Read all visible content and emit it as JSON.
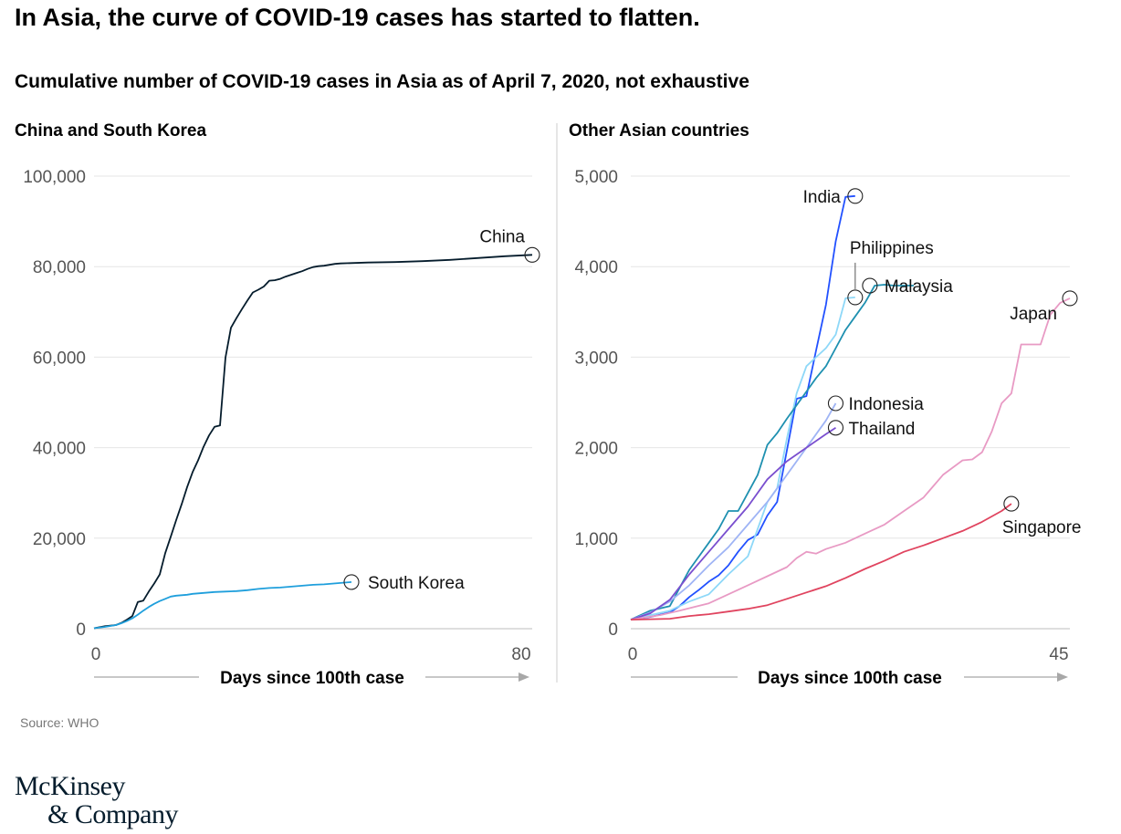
{
  "headline": "In Asia, the curve of COVID-19 cases has started to flatten.",
  "subtitle": "Cumulative number of COVID-19 cases in Asia as of April 7, 2020, not exhaustive",
  "source": "Source: WHO",
  "logo": {
    "line1": "McKinsey",
    "line2": "& Company"
  },
  "colors": {
    "grid": "#e6e6e6",
    "axis": "#999999",
    "tick_text": "#555555"
  },
  "chart_data": [
    {
      "type": "line",
      "title": "China and South Korea",
      "xlabel": "Days since 100th case",
      "xlim": [
        0,
        80
      ],
      "xticks": [
        "0",
        "80"
      ],
      "ylim": [
        0,
        100000
      ],
      "yticks": [
        {
          "value": 0,
          "label": "0"
        },
        {
          "value": 20000,
          "label": "20,000"
        },
        {
          "value": 40000,
          "label": "40,000"
        },
        {
          "value": 60000,
          "label": "60,000"
        },
        {
          "value": 80000,
          "label": "80,000"
        },
        {
          "value": 100000,
          "label": "100,000"
        }
      ],
      "grid": true,
      "series": [
        {
          "name": "China",
          "color": "#051c2c",
          "x": [
            0,
            2,
            4,
            5,
            6,
            7,
            8,
            9,
            10,
            11,
            12,
            13,
            14,
            15,
            16,
            17,
            18,
            19,
            20,
            21,
            22,
            23,
            24,
            25,
            26,
            27,
            28,
            29,
            30,
            31,
            32,
            33,
            34,
            35,
            36,
            37,
            38,
            39,
            40,
            41,
            42,
            43,
            44,
            45,
            50,
            55,
            60,
            65,
            70,
            75,
            80
          ],
          "y": [
            100,
            550,
            800,
            1300,
            2000,
            2800,
            5900,
            6200,
            8200,
            10000,
            12000,
            16700,
            20300,
            24000,
            27500,
            31300,
            34600,
            37200,
            40200,
            42700,
            44600,
            44900,
            59900,
            66500,
            68600,
            70600,
            72500,
            74300,
            74900,
            75600,
            76900,
            77000,
            77300,
            77800,
            78200,
            78600,
            79000,
            79500,
            79900,
            80100,
            80200,
            80400,
            80600,
            80700,
            80900,
            81000,
            81200,
            81500,
            81900,
            82300,
            82600
          ],
          "label_position": "top"
        },
        {
          "name": "South Korea",
          "color": "#1f9fdc",
          "x": [
            0,
            2,
            4,
            5,
            6,
            7,
            8,
            9,
            10,
            11,
            12,
            13,
            14,
            15,
            16,
            17,
            18,
            20,
            22,
            24,
            26,
            28,
            30,
            32,
            34,
            36,
            38,
            40,
            42,
            44,
            46,
            47
          ],
          "y": [
            100,
            400,
            800,
            1200,
            1700,
            2300,
            3100,
            4000,
            4800,
            5500,
            6100,
            6600,
            7100,
            7300,
            7400,
            7500,
            7700,
            7900,
            8100,
            8200,
            8300,
            8500,
            8800,
            9000,
            9100,
            9300,
            9500,
            9700,
            9800,
            10000,
            10200,
            10300
          ],
          "label_position": "right"
        }
      ]
    },
    {
      "type": "line",
      "title": "Other Asian countries",
      "xlabel": "Days since 100th case",
      "xlim": [
        0,
        45
      ],
      "xticks": [
        "0",
        "45"
      ],
      "ylim": [
        0,
        5000
      ],
      "yticks": [
        {
          "value": 0,
          "label": "0"
        },
        {
          "value": 1000,
          "label": "1,000"
        },
        {
          "value": 2000,
          "label": "2,000"
        },
        {
          "value": 3000,
          "label": "3,000"
        },
        {
          "value": 4000,
          "label": "4,000"
        },
        {
          "value": 5000,
          "label": "5,000"
        }
      ],
      "grid": true,
      "series": [
        {
          "name": "India",
          "color": "#2251ff",
          "x": [
            0,
            2,
            4,
            5,
            6,
            7,
            8,
            9,
            10,
            11,
            12,
            13,
            14,
            15,
            16,
            17,
            18,
            19,
            20,
            21,
            22,
            23
          ],
          "y": [
            100,
            130,
            180,
            250,
            350,
            430,
            520,
            590,
            700,
            850,
            980,
            1040,
            1250,
            1400,
            1970,
            2540,
            2570,
            3080,
            3580,
            4280,
            4770,
            4780
          ],
          "label_position": "left"
        },
        {
          "name": "Philippines",
          "color": "#8ed8f8",
          "x": [
            0,
            2,
            4,
            6,
            8,
            10,
            12,
            14,
            15,
            16,
            17,
            18,
            19,
            20,
            21,
            22,
            23
          ],
          "y": [
            100,
            150,
            200,
            300,
            380,
            600,
            800,
            1400,
            1550,
            2100,
            2600,
            2900,
            3000,
            3100,
            3250,
            3650,
            3660
          ],
          "label_position": "top-leader"
        },
        {
          "name": "Malaysia",
          "color": "#1e90b0",
          "x": [
            0,
            2,
            4,
            5,
            6,
            7,
            8,
            9,
            10,
            11,
            12,
            13,
            14,
            15,
            16,
            17,
            18,
            19,
            20,
            21,
            22,
            23,
            24,
            25,
            26,
            27,
            28,
            29
          ],
          "y": [
            100,
            200,
            250,
            450,
            650,
            800,
            950,
            1100,
            1300,
            1300,
            1500,
            1700,
            2030,
            2160,
            2320,
            2470,
            2620,
            2770,
            2900,
            3100,
            3300,
            3450,
            3600,
            3790,
            3800,
            3790,
            3790,
            3790
          ],
          "label_position": "right"
        },
        {
          "name": "Indonesia",
          "color": "#9fb4f5",
          "x": [
            0,
            2,
            4,
            6,
            8,
            10,
            12,
            14,
            16,
            18,
            20,
            21
          ],
          "y": [
            100,
            180,
            300,
            480,
            700,
            900,
            1150,
            1400,
            1700,
            2000,
            2300,
            2490
          ],
          "label_position": "right"
        },
        {
          "name": "Thailand",
          "color": "#7a4fcf",
          "x": [
            0,
            2,
            4,
            6,
            8,
            10,
            12,
            14,
            16,
            18,
            20,
            21
          ],
          "y": [
            100,
            170,
            320,
            600,
            850,
            1100,
            1350,
            1650,
            1850,
            2000,
            2150,
            2220
          ],
          "label_position": "right"
        },
        {
          "name": "Japan",
          "color": "#e89ac4",
          "x": [
            0,
            3,
            5,
            8,
            10,
            12,
            14,
            16,
            17,
            18,
            19,
            20,
            22,
            24,
            26,
            28,
            30,
            32,
            34,
            35,
            36,
            37,
            38,
            39,
            40,
            41,
            42,
            43,
            44,
            45
          ],
          "y": [
            100,
            150,
            200,
            280,
            380,
            480,
            580,
            680,
            780,
            850,
            830,
            880,
            950,
            1050,
            1150,
            1300,
            1450,
            1700,
            1860,
            1870,
            1950,
            2180,
            2490,
            2600,
            3140,
            3140,
            3140,
            3470,
            3600,
            3650
          ],
          "label_position": "left"
        },
        {
          "name": "Singapore",
          "color": "#e0445f",
          "x": [
            0,
            4,
            6,
            8,
            10,
            12,
            14,
            16,
            18,
            20,
            22,
            24,
            26,
            28,
            30,
            32,
            34,
            36,
            38,
            39
          ],
          "y": [
            100,
            110,
            140,
            160,
            190,
            220,
            260,
            330,
            400,
            470,
            560,
            660,
            750,
            850,
            920,
            1000,
            1080,
            1180,
            1300,
            1380
          ],
          "label_position": "bottom"
        }
      ]
    }
  ]
}
